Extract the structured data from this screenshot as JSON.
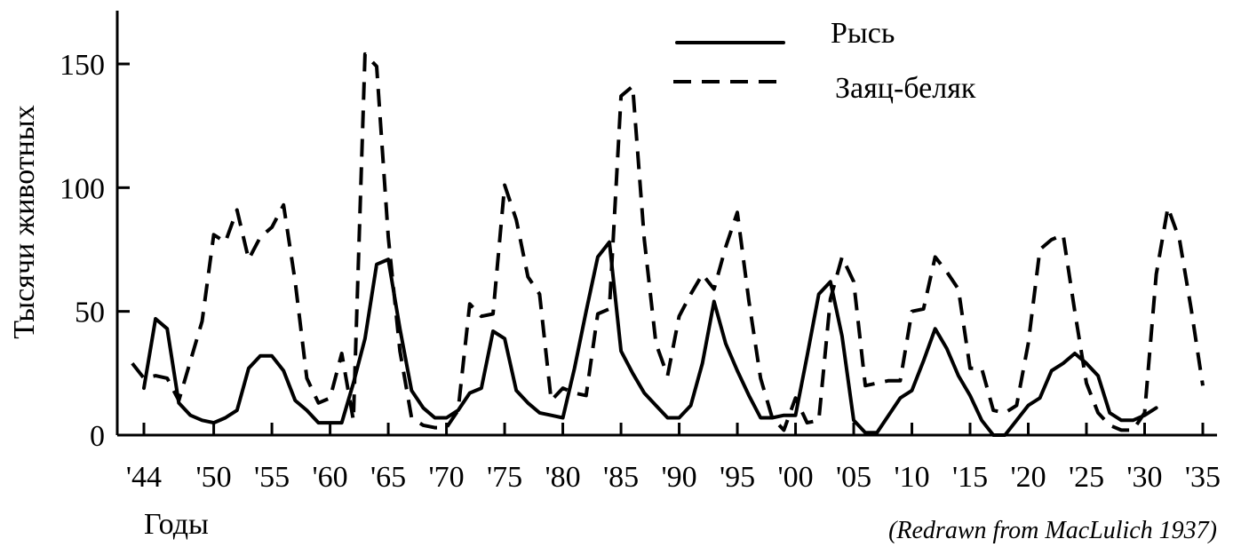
{
  "chart_data": {
    "type": "line",
    "ylabel": "Тысячи животных",
    "xlabel": "Годы",
    "source_note": "(Redrawn from MacLulich 1937)",
    "ylim": [
      0,
      160
    ],
    "xlim": [
      1843,
      1936
    ],
    "yticks": [
      0,
      50,
      100,
      150
    ],
    "xticks": [
      {
        "value": 1844,
        "label": "'44"
      },
      {
        "value": 1850,
        "label": "'50"
      },
      {
        "value": 1855,
        "label": "'55"
      },
      {
        "value": 1860,
        "label": "'60"
      },
      {
        "value": 1865,
        "label": "'65"
      },
      {
        "value": 1870,
        "label": "'70"
      },
      {
        "value": 1875,
        "label": "'75"
      },
      {
        "value": 1880,
        "label": "'80"
      },
      {
        "value": 1885,
        "label": "'85"
      },
      {
        "value": 1890,
        "label": "'90"
      },
      {
        "value": 1895,
        "label": "'95"
      },
      {
        "value": 1900,
        "label": "'00"
      },
      {
        "value": 1905,
        "label": "'05"
      },
      {
        "value": 1910,
        "label": "'10"
      },
      {
        "value": 1915,
        "label": "'15"
      },
      {
        "value": 1920,
        "label": "'20"
      },
      {
        "value": 1925,
        "label": "'25"
      },
      {
        "value": 1930,
        "label": "'30"
      },
      {
        "value": 1935,
        "label": "'35"
      }
    ],
    "legend_placement": "top-right",
    "series": [
      {
        "name": "Рысь",
        "style": "solid",
        "points": [
          [
            1844,
            19
          ],
          [
            1845,
            47
          ],
          [
            1846,
            43
          ],
          [
            1847,
            13
          ],
          [
            1848,
            8
          ],
          [
            1849,
            6
          ],
          [
            1850,
            5
          ],
          [
            1851,
            7
          ],
          [
            1852,
            10
          ],
          [
            1853,
            27
          ],
          [
            1854,
            32
          ],
          [
            1855,
            32
          ],
          [
            1856,
            26
          ],
          [
            1857,
            14
          ],
          [
            1858,
            10
          ],
          [
            1859,
            5
          ],
          [
            1860,
            5
          ],
          [
            1861,
            5
          ],
          [
            1862,
            21
          ],
          [
            1863,
            39
          ],
          [
            1864,
            69
          ],
          [
            1865,
            71
          ],
          [
            1866,
            43
          ],
          [
            1867,
            18
          ],
          [
            1868,
            11
          ],
          [
            1869,
            7
          ],
          [
            1870,
            7
          ],
          [
            1871,
            10
          ],
          [
            1872,
            17
          ],
          [
            1873,
            19
          ],
          [
            1874,
            42
          ],
          [
            1875,
            39
          ],
          [
            1876,
            18
          ],
          [
            1877,
            13
          ],
          [
            1878,
            9
          ],
          [
            1879,
            8
          ],
          [
            1880,
            7
          ],
          [
            1881,
            27
          ],
          [
            1882,
            50
          ],
          [
            1883,
            72
          ],
          [
            1884,
            78
          ],
          [
            1885,
            34
          ],
          [
            1886,
            25
          ],
          [
            1887,
            17
          ],
          [
            1888,
            12
          ],
          [
            1889,
            7
          ],
          [
            1890,
            7
          ],
          [
            1891,
            12
          ],
          [
            1892,
            29
          ],
          [
            1893,
            54
          ],
          [
            1894,
            37
          ],
          [
            1895,
            26
          ],
          [
            1896,
            16
          ],
          [
            1897,
            7
          ],
          [
            1898,
            7
          ],
          [
            1899,
            8
          ],
          [
            1900,
            8
          ],
          [
            1901,
            32
          ],
          [
            1902,
            57
          ],
          [
            1903,
            62
          ],
          [
            1904,
            40
          ],
          [
            1905,
            6
          ],
          [
            1906,
            1
          ],
          [
            1907,
            1
          ],
          [
            1908,
            8
          ],
          [
            1909,
            15
          ],
          [
            1910,
            18
          ],
          [
            1911,
            30
          ],
          [
            1912,
            43
          ],
          [
            1913,
            35
          ],
          [
            1914,
            24
          ],
          [
            1915,
            16
          ],
          [
            1916,
            6
          ],
          [
            1917,
            0
          ],
          [
            1918,
            0
          ],
          [
            1919,
            6
          ],
          [
            1920,
            12
          ],
          [
            1921,
            15
          ],
          [
            1922,
            26
          ],
          [
            1923,
            29
          ],
          [
            1924,
            33
          ],
          [
            1925,
            29
          ],
          [
            1926,
            24
          ],
          [
            1927,
            9
          ],
          [
            1928,
            6
          ],
          [
            1929,
            6
          ],
          [
            1930,
            8
          ],
          [
            1931,
            11
          ]
        ]
      },
      {
        "name": "Заяц-беляк",
        "style": "dashed",
        "points": [
          [
            1843,
            29
          ],
          [
            1844,
            23
          ],
          [
            1845,
            24
          ],
          [
            1846,
            23
          ],
          [
            1847,
            14
          ],
          [
            1848,
            30
          ],
          [
            1849,
            46
          ],
          [
            1850,
            81
          ],
          [
            1851,
            78
          ],
          [
            1852,
            91
          ],
          [
            1853,
            71
          ],
          [
            1854,
            80
          ],
          [
            1855,
            84
          ],
          [
            1856,
            93
          ],
          [
            1857,
            62
          ],
          [
            1858,
            23
          ],
          [
            1859,
            13
          ],
          [
            1860,
            15
          ],
          [
            1861,
            33
          ],
          [
            1862,
            6
          ],
          [
            1863,
            154
          ],
          [
            1864,
            149
          ],
          [
            1865,
            80
          ],
          [
            1866,
            34
          ],
          [
            1867,
            7
          ],
          [
            1868,
            4
          ],
          [
            1869,
            3
          ],
          [
            1870,
            3
          ],
          [
            1871,
            10
          ],
          [
            1872,
            53
          ],
          [
            1873,
            48
          ],
          [
            1874,
            49
          ],
          [
            1875,
            101
          ],
          [
            1876,
            87
          ],
          [
            1877,
            64
          ],
          [
            1878,
            57
          ],
          [
            1879,
            14
          ],
          [
            1880,
            19
          ],
          [
            1881,
            17
          ],
          [
            1882,
            16
          ],
          [
            1883,
            49
          ],
          [
            1884,
            51
          ],
          [
            1885,
            137
          ],
          [
            1886,
            141
          ],
          [
            1887,
            79
          ],
          [
            1888,
            37
          ],
          [
            1889,
            24
          ],
          [
            1890,
            48
          ],
          [
            1891,
            57
          ],
          [
            1892,
            65
          ],
          [
            1893,
            59
          ],
          [
            1894,
            76
          ],
          [
            1895,
            90
          ],
          [
            1896,
            54
          ],
          [
            1897,
            23
          ],
          [
            1898,
            7
          ],
          [
            1899,
            2
          ],
          [
            1900,
            15
          ],
          [
            1901,
            5
          ],
          [
            1902,
            6
          ],
          [
            1903,
            55
          ],
          [
            1904,
            72
          ],
          [
            1905,
            62
          ],
          [
            1906,
            20
          ],
          [
            1907,
            21
          ],
          [
            1908,
            22
          ],
          [
            1909,
            22
          ],
          [
            1910,
            50
          ],
          [
            1911,
            51
          ],
          [
            1912,
            72
          ],
          [
            1913,
            66
          ],
          [
            1914,
            59
          ],
          [
            1915,
            27
          ],
          [
            1916,
            27
          ],
          [
            1917,
            10
          ],
          [
            1918,
            9
          ],
          [
            1919,
            12
          ],
          [
            1920,
            37
          ],
          [
            1921,
            75
          ],
          [
            1922,
            79
          ],
          [
            1923,
            81
          ],
          [
            1924,
            50
          ],
          [
            1925,
            21
          ],
          [
            1926,
            9
          ],
          [
            1927,
            4
          ],
          [
            1928,
            2
          ],
          [
            1929,
            2
          ],
          [
            1930,
            9
          ],
          [
            1931,
            65
          ],
          [
            1932,
            92
          ],
          [
            1933,
            79
          ],
          [
            1934,
            51
          ],
          [
            1935,
            20
          ]
        ]
      }
    ]
  }
}
